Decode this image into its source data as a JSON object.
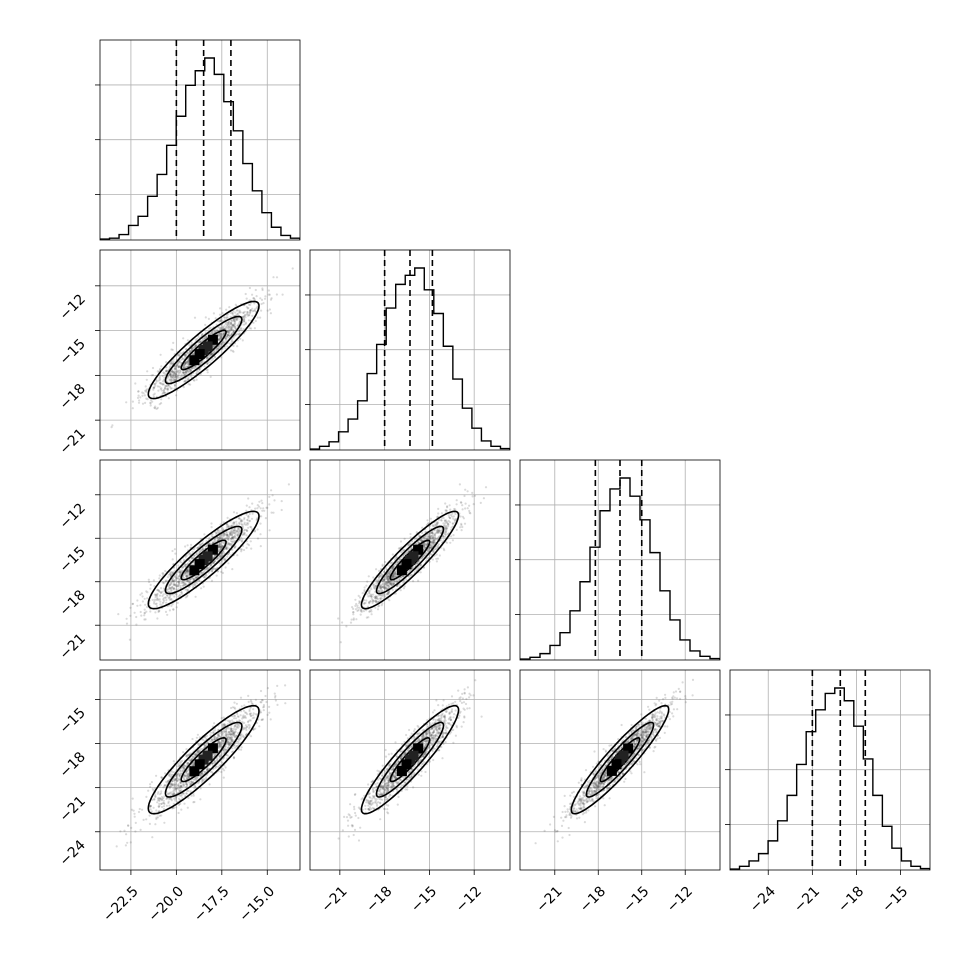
{
  "chart_data": {
    "type": "corner",
    "n_parameters": 4,
    "grid": true,
    "parameters": [
      {
        "mean": -18.5,
        "sd": 1.45,
        "range": [
          -24.2,
          -13.2
        ],
        "ticks": [
          -22.5,
          -20.0,
          -17.5,
          -15.0
        ],
        "tick_labels": [
          "−22.5",
          "−20.0",
          "−17.5",
          "−15.0"
        ],
        "quantiles": [
          -20.0,
          -18.5,
          -17.0
        ],
        "histogram": [
          0.005,
          0.01,
          0.03,
          0.08,
          0.13,
          0.24,
          0.36,
          0.52,
          0.68,
          0.85,
          0.93,
          1.0,
          0.91,
          0.76,
          0.6,
          0.42,
          0.27,
          0.15,
          0.07,
          0.025,
          0.01
        ]
      },
      {
        "mean": -16.3,
        "sd": 1.55,
        "range": [
          -23.0,
          -9.6
        ],
        "ticks": [
          -21,
          -18,
          -15,
          -12
        ],
        "tick_labels": [
          "−21",
          "−18",
          "−15",
          "−12"
        ],
        "quantiles": [
          -18.0,
          -16.3,
          -14.8
        ],
        "histogram": [
          0.005,
          0.02,
          0.045,
          0.1,
          0.17,
          0.27,
          0.42,
          0.58,
          0.78,
          0.91,
          0.96,
          1.0,
          0.88,
          0.75,
          0.57,
          0.39,
          0.23,
          0.12,
          0.05,
          0.02,
          0.008
        ]
      },
      {
        "mean": -16.5,
        "sd": 1.6,
        "range": [
          -23.4,
          -9.6
        ],
        "ticks": [
          -21,
          -18,
          -15,
          -12
        ],
        "tick_labels": [
          "−21",
          "−18",
          "−15",
          "−12"
        ],
        "quantiles": [
          -18.2,
          -16.5,
          -15.0
        ],
        "histogram": [
          0.005,
          0.015,
          0.035,
          0.08,
          0.15,
          0.27,
          0.43,
          0.62,
          0.82,
          0.94,
          1.0,
          0.9,
          0.77,
          0.59,
          0.38,
          0.22,
          0.11,
          0.05,
          0.02,
          0.008
        ]
      },
      {
        "mean": -19.1,
        "sd": 1.75,
        "range": [
          -26.6,
          -13.0
        ],
        "ticks": [
          -24,
          -21,
          -18,
          -15
        ],
        "tick_labels": [
          "−24",
          "−21",
          "−18",
          "−15"
        ],
        "quantiles": [
          -21.0,
          -19.1,
          -17.4
        ],
        "histogram": [
          0.005,
          0.02,
          0.05,
          0.09,
          0.16,
          0.27,
          0.41,
          0.58,
          0.76,
          0.88,
          0.97,
          1.0,
          0.93,
          0.79,
          0.61,
          0.41,
          0.24,
          0.12,
          0.05,
          0.02,
          0.008
        ]
      }
    ],
    "correlations": [
      [
        1,
        2,
        0.91
      ],
      [
        1,
        3,
        0.9
      ],
      [
        1,
        4,
        0.9
      ],
      [
        2,
        3,
        0.92
      ],
      [
        2,
        4,
        0.92
      ],
      [
        3,
        4,
        0.93
      ]
    ],
    "contour_levels": 3,
    "colors": {
      "line": "#000000",
      "grid": "#b0b0b0",
      "points": "#555555"
    }
  }
}
